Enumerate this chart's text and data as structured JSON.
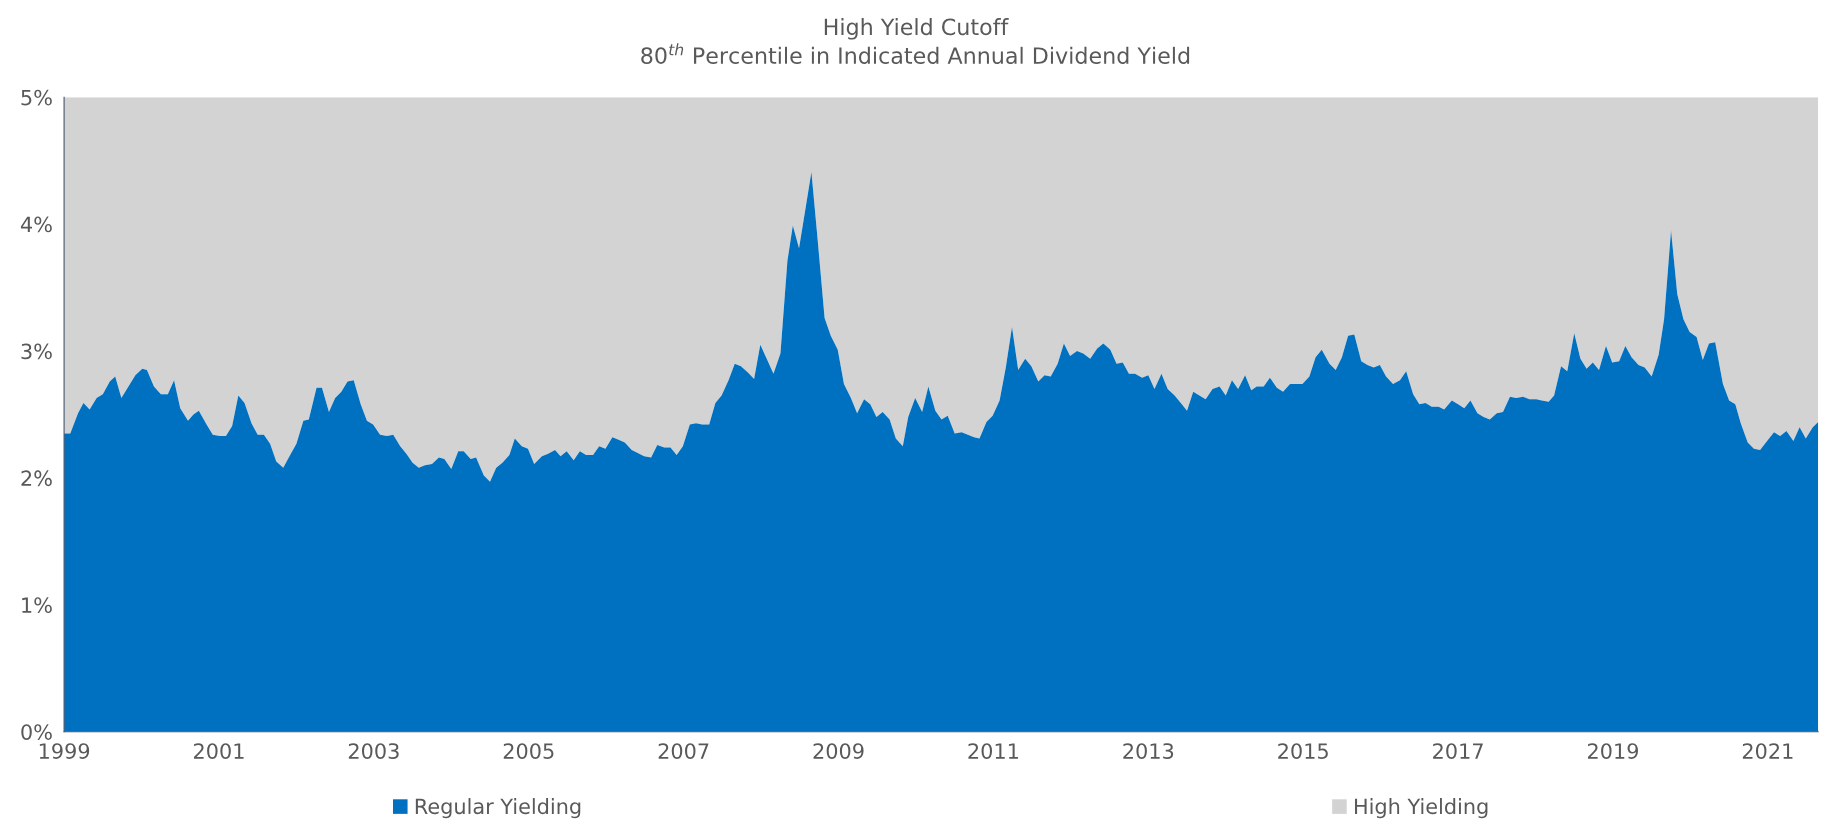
{
  "chart_data": {
    "type": "area",
    "title": "High Yield Cutoff",
    "subtitle": "80$^{th}$ Percentile in Indicated Annual Dividend Yield",
    "xlim": [
      1999,
      2021.65
    ],
    "xticks": [
      1999,
      2001,
      2003,
      2005,
      2007,
      2009,
      2011,
      2013,
      2015,
      2017,
      2019,
      2021
    ],
    "ylim": [
      0,
      5
    ],
    "yticks": [
      {
        "value": 0,
        "label": "0%"
      },
      {
        "value": 1,
        "label": "1%"
      },
      {
        "value": 2,
        "label": "2%"
      },
      {
        "value": 3,
        "label": "3%"
      },
      {
        "value": 4,
        "label": "4%"
      },
      {
        "value": 5,
        "label": "5%"
      }
    ],
    "grid": false,
    "legend": "bottom",
    "stacked": true,
    "x": [
      1999.0,
      1999.08,
      1999.18,
      1999.25,
      1999.33,
      1999.42,
      1999.5,
      1999.59,
      1999.66,
      1999.74,
      1999.92,
      2000.01,
      2000.07,
      2000.16,
      2000.25,
      2000.34,
      2000.42,
      2000.5,
      2000.6,
      2000.67,
      2000.74,
      2000.84,
      2000.92,
      2001.01,
      2001.09,
      2001.17,
      2001.25,
      2001.33,
      2001.42,
      2001.5,
      2001.58,
      2001.66,
      2001.74,
      2001.83,
      2001.91,
      2002.0,
      2002.09,
      2002.16,
      2002.26,
      2002.33,
      2002.42,
      2002.5,
      2002.58,
      2002.66,
      2002.74,
      2002.83,
      2002.91,
      2002.99,
      2003.08,
      2003.17,
      2003.25,
      2003.34,
      2003.42,
      2003.5,
      2003.58,
      2003.66,
      2003.75,
      2003.84,
      2003.91,
      2004.0,
      2004.09,
      2004.16,
      2004.25,
      2004.32,
      2004.42,
      2004.5,
      2004.58,
      2004.66,
      2004.75,
      2004.82,
      2004.91,
      2004.99,
      2005.07,
      2005.17,
      2005.25,
      2005.34,
      2005.41,
      2005.49,
      2005.58,
      2005.66,
      2005.74,
      2005.83,
      2005.91,
      2005.99,
      2006.08,
      2006.16,
      2006.24,
      2006.33,
      2006.49,
      2006.58,
      2006.66,
      2006.75,
      2006.83,
      2006.91,
      2006.99,
      2007.08,
      2007.16,
      2007.24,
      2007.33,
      2007.41,
      2007.49,
      2007.58,
      2007.66,
      2007.74,
      2007.83,
      2007.91,
      2007.99,
      2008.08,
      2008.16,
      2008.25,
      2008.34,
      2008.41,
      2008.49,
      2008.57,
      2008.65,
      2008.73,
      2008.82,
      2008.9,
      2008.99,
      2009.07,
      2009.16,
      2009.24,
      2009.33,
      2009.41,
      2009.49,
      2009.57,
      2009.66,
      2009.74,
      2009.83,
      2009.9,
      2009.99,
      2010.08,
      2010.16,
      2010.25,
      2010.33,
      2010.41,
      2010.5,
      2010.59,
      2010.67,
      2010.75,
      2010.82,
      2010.91,
      2010.99,
      2011.08,
      2011.16,
      2011.24,
      2011.32,
      2011.41,
      2011.49,
      2011.58,
      2011.66,
      2011.74,
      2011.83,
      2011.91,
      2011.99,
      2012.08,
      2012.16,
      2012.25,
      2012.34,
      2012.42,
      2012.51,
      2012.59,
      2012.67,
      2012.75,
      2012.83,
      2012.92,
      2013.0,
      2013.08,
      2013.17,
      2013.25,
      2013.34,
      2013.42,
      2013.5,
      2013.58,
      2013.66,
      2013.74,
      2013.83,
      2013.92,
      2014.0,
      2014.08,
      2014.16,
      2014.25,
      2014.33,
      2014.4,
      2014.49,
      2014.57,
      2014.66,
      2014.74,
      2014.83,
      2014.92,
      2014.99,
      2015.08,
      2015.16,
      2015.24,
      2015.34,
      2015.42,
      2015.5,
      2015.58,
      2015.66,
      2015.75,
      2015.83,
      2015.91,
      2015.99,
      2016.07,
      2016.16,
      2016.25,
      2016.33,
      2016.42,
      2016.5,
      2016.58,
      2016.66,
      2016.75,
      2016.82,
      2016.92,
      2017.0,
      2017.08,
      2017.16,
      2017.25,
      2017.33,
      2017.41,
      2017.5,
      2017.58,
      2017.67,
      2017.75,
      2017.84,
      2017.92,
      2018.01,
      2018.08,
      2018.17,
      2018.24,
      2018.33,
      2018.41,
      2018.5,
      2018.58,
      2018.66,
      2018.74,
      2018.82,
      2018.91,
      2018.99,
      2019.08,
      2019.16,
      2019.24,
      2019.33,
      2019.41,
      2019.5,
      2019.59,
      2019.66,
      2019.75,
      2019.83,
      2019.91,
      2019.99,
      2020.08,
      2020.16,
      2020.24,
      2020.32,
      2020.42,
      2020.5,
      2020.58,
      2020.65,
      2020.74,
      2020.82,
      2020.9,
      2020.99,
      2021.08,
      2021.16,
      2021.24,
      2021.33,
      2021.41,
      2021.49,
      2021.58,
      2021.65
    ],
    "series": [
      {
        "name": "Regular Yielding",
        "color": "#0070c0",
        "values": [
          2.35,
          2.35,
          2.51,
          2.59,
          2.54,
          2.63,
          2.66,
          2.76,
          2.8,
          2.63,
          2.81,
          2.86,
          2.85,
          2.72,
          2.66,
          2.66,
          2.77,
          2.55,
          2.45,
          2.5,
          2.53,
          2.42,
          2.34,
          2.33,
          2.33,
          2.41,
          2.65,
          2.59,
          2.43,
          2.34,
          2.34,
          2.27,
          2.13,
          2.08,
          2.17,
          2.27,
          2.45,
          2.46,
          2.71,
          2.71,
          2.52,
          2.63,
          2.68,
          2.76,
          2.77,
          2.58,
          2.45,
          2.42,
          2.34,
          2.33,
          2.34,
          2.25,
          2.19,
          2.12,
          2.08,
          2.1,
          2.11,
          2.16,
          2.15,
          2.07,
          2.21,
          2.21,
          2.15,
          2.16,
          2.02,
          1.97,
          2.08,
          2.12,
          2.18,
          2.31,
          2.25,
          2.23,
          2.11,
          2.17,
          2.19,
          2.22,
          2.17,
          2.21,
          2.14,
          2.21,
          2.18,
          2.18,
          2.25,
          2.23,
          2.32,
          2.3,
          2.28,
          2.22,
          2.17,
          2.16,
          2.26,
          2.24,
          2.24,
          2.18,
          2.25,
          2.42,
          2.43,
          2.42,
          2.42,
          2.59,
          2.65,
          2.77,
          2.9,
          2.88,
          2.83,
          2.78,
          3.05,
          2.93,
          2.82,
          2.98,
          3.71,
          3.99,
          3.81,
          4.11,
          4.41,
          3.88,
          3.26,
          3.12,
          3.01,
          2.74,
          2.63,
          2.51,
          2.62,
          2.58,
          2.48,
          2.52,
          2.46,
          2.31,
          2.25,
          2.48,
          2.63,
          2.52,
          2.72,
          2.53,
          2.46,
          2.49,
          2.35,
          2.36,
          2.34,
          2.32,
          2.31,
          2.44,
          2.49,
          2.61,
          2.87,
          3.19,
          2.85,
          2.94,
          2.88,
          2.76,
          2.81,
          2.8,
          2.9,
          3.06,
          2.96,
          3.0,
          2.98,
          2.94,
          3.02,
          3.06,
          3.01,
          2.9,
          2.91,
          2.82,
          2.82,
          2.79,
          2.81,
          2.7,
          2.82,
          2.7,
          2.65,
          2.59,
          2.53,
          2.68,
          2.65,
          2.62,
          2.7,
          2.72,
          2.65,
          2.77,
          2.7,
          2.81,
          2.69,
          2.72,
          2.72,
          2.79,
          2.71,
          2.68,
          2.74,
          2.74,
          2.74,
          2.8,
          2.95,
          3.01,
          2.9,
          2.85,
          2.95,
          3.12,
          3.13,
          2.92,
          2.89,
          2.87,
          2.89,
          2.8,
          2.74,
          2.77,
          2.84,
          2.66,
          2.58,
          2.59,
          2.56,
          2.56,
          2.54,
          2.61,
          2.58,
          2.55,
          2.61,
          2.51,
          2.48,
          2.46,
          2.51,
          2.52,
          2.64,
          2.63,
          2.64,
          2.62,
          2.62,
          2.61,
          2.6,
          2.65,
          2.88,
          2.84,
          3.14,
          2.94,
          2.86,
          2.91,
          2.85,
          3.04,
          2.91,
          2.92,
          3.04,
          2.95,
          2.89,
          2.87,
          2.8,
          2.97,
          3.25,
          3.95,
          3.45,
          3.25,
          3.15,
          3.11,
          2.93,
          3.06,
          3.07,
          2.74,
          2.61,
          2.58,
          2.43,
          2.28,
          2.23,
          2.22,
          2.29,
          2.36,
          2.33,
          2.37,
          2.29,
          2.4,
          2.31,
          2.4,
          2.44
        ]
      },
      {
        "name": "High Yielding",
        "color": "#d3d3d3",
        "values": [
          2.65,
          2.65,
          2.49,
          2.41,
          2.46,
          2.37,
          2.34,
          2.24,
          2.2,
          2.37,
          2.19,
          2.14,
          2.15,
          2.28,
          2.34,
          2.34,
          2.23,
          2.45,
          2.55,
          2.5,
          2.47,
          2.58,
          2.66,
          2.67,
          2.67,
          2.59,
          2.35,
          2.41,
          2.57,
          2.66,
          2.66,
          2.73,
          2.87,
          2.92,
          2.83,
          2.73,
          2.55,
          2.54,
          2.29,
          2.29,
          2.48,
          2.37,
          2.32,
          2.24,
          2.23,
          2.42,
          2.55,
          2.58,
          2.66,
          2.67,
          2.66,
          2.75,
          2.81,
          2.88,
          2.92,
          2.9,
          2.89,
          2.84,
          2.85,
          2.93,
          2.79,
          2.79,
          2.85,
          2.84,
          2.98,
          3.03,
          2.92,
          2.88,
          2.82,
          2.69,
          2.75,
          2.77,
          2.89,
          2.83,
          2.81,
          2.78,
          2.83,
          2.79,
          2.86,
          2.79,
          2.82,
          2.82,
          2.75,
          2.77,
          2.68,
          2.7,
          2.72,
          2.78,
          2.83,
          2.84,
          2.74,
          2.76,
          2.76,
          2.82,
          2.75,
          2.58,
          2.57,
          2.58,
          2.58,
          2.41,
          2.35,
          2.23,
          2.1,
          2.12,
          2.17,
          2.22,
          1.95,
          2.07,
          2.18,
          2.02,
          1.29,
          1.01,
          1.19,
          0.89,
          0.59,
          1.12,
          1.74,
          1.88,
          1.99,
          2.26,
          2.37,
          2.49,
          2.38,
          2.42,
          2.52,
          2.48,
          2.54,
          2.69,
          2.75,
          2.52,
          2.37,
          2.48,
          2.28,
          2.47,
          2.54,
          2.51,
          2.65,
          2.64,
          2.66,
          2.68,
          2.69,
          2.56,
          2.51,
          2.39,
          2.13,
          1.81,
          2.15,
          2.06,
          2.12,
          2.24,
          2.19,
          2.2,
          2.1,
          1.94,
          2.04,
          2.0,
          2.02,
          2.06,
          1.98,
          1.94,
          1.99,
          2.1,
          2.09,
          2.18,
          2.18,
          2.21,
          2.19,
          2.3,
          2.18,
          2.3,
          2.35,
          2.41,
          2.47,
          2.32,
          2.35,
          2.38,
          2.3,
          2.28,
          2.35,
          2.23,
          2.3,
          2.19,
          2.31,
          2.28,
          2.28,
          2.21,
          2.29,
          2.32,
          2.26,
          2.26,
          2.26,
          2.2,
          2.05,
          1.99,
          2.1,
          2.15,
          2.05,
          1.88,
          1.87,
          2.08,
          2.11,
          2.13,
          2.11,
          2.2,
          2.26,
          2.23,
          2.16,
          2.34,
          2.42,
          2.41,
          2.44,
          2.44,
          2.46,
          2.39,
          2.42,
          2.45,
          2.39,
          2.49,
          2.52,
          2.54,
          2.49,
          2.48,
          2.36,
          2.37,
          2.36,
          2.38,
          2.38,
          2.39,
          2.4,
          2.35,
          2.12,
          2.16,
          1.86,
          2.06,
          2.14,
          2.09,
          2.15,
          1.96,
          2.09,
          2.08,
          1.96,
          2.05,
          2.11,
          2.13,
          2.2,
          2.03,
          1.75,
          1.05,
          1.55,
          1.75,
          1.85,
          1.89,
          2.07,
          1.94,
          1.93,
          2.26,
          2.39,
          2.42,
          2.57,
          2.72,
          2.77,
          2.78,
          2.71,
          2.64,
          2.67,
          2.63,
          2.71,
          2.6,
          2.69,
          2.6,
          2.56
        ]
      }
    ]
  }
}
